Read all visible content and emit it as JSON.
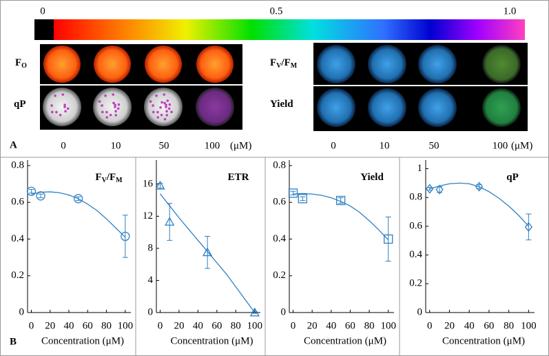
{
  "panel_a": {
    "label": "A",
    "colorbar": {
      "lim": [
        0,
        1
      ],
      "ticks": [
        0,
        0.5,
        {
          "value": 1,
          "label": "1.0"
        }
      ]
    },
    "left_rows": [
      [
        "F",
        "O"
      ],
      [
        "qP"
      ]
    ],
    "right_rows": [
      [
        "F",
        "V",
        "/F",
        "M"
      ],
      [
        "Yield"
      ]
    ],
    "concentrations_left": [
      0,
      10,
      50,
      100
    ],
    "concentrations_right": [
      0,
      10,
      50,
      100
    ],
    "unit": "(μM)"
  },
  "panel_b": {
    "label": "B"
  },
  "chart_data": [
    {
      "type": "scatter",
      "title": [
        "F",
        "V",
        "/F",
        "M"
      ],
      "x_label": "Concentration (μM)",
      "x": [
        0,
        10,
        50,
        100
      ],
      "values": [
        0.66,
        0.635,
        0.62,
        0.415
      ],
      "errors": [
        0.01,
        0.01,
        0.01,
        0.115
      ],
      "marker": "circle",
      "color": "#2f7fc1",
      "fit": {
        "x": [
          0,
          10,
          20,
          30,
          40,
          50,
          60,
          70,
          80,
          90,
          100
        ],
        "values": [
          0.645,
          0.655,
          0.657,
          0.652,
          0.64,
          0.62,
          0.59,
          0.555,
          0.51,
          0.46,
          0.41
        ]
      },
      "xlim": [
        -4,
        106
      ],
      "xticks": [
        0,
        20,
        40,
        60,
        80,
        100
      ],
      "ylim": [
        0,
        0.83
      ],
      "yticks": [
        0,
        0.2,
        0.4,
        0.6,
        0.8
      ]
    },
    {
      "type": "scatter",
      "title": [
        "ETR"
      ],
      "x_label": "Concentration (μM)",
      "x": [
        0,
        10,
        50,
        100
      ],
      "values": [
        15.8,
        11.3,
        7.5,
        0
      ],
      "errors": [
        0.3,
        2.3,
        2,
        0.1
      ],
      "marker": "triangle",
      "color": "#2f7fc1",
      "fit": {
        "x": [
          0,
          10,
          20,
          30,
          40,
          50,
          60,
          70,
          80,
          90,
          100
        ],
        "values": [
          14.8,
          13.3,
          11.8,
          10.4,
          9,
          7.6,
          6.2,
          4.8,
          3.2,
          1.6,
          0
        ]
      },
      "xlim": [
        -4,
        106
      ],
      "xticks": [
        0,
        20,
        40,
        60,
        80,
        100
      ],
      "ylim": [
        0,
        19
      ],
      "yticks": [
        0,
        4,
        8,
        12,
        16
      ]
    },
    {
      "type": "scatter",
      "title": [
        "Yield"
      ],
      "x_label": "Concentration (μM)",
      "x": [
        0,
        10,
        50,
        100
      ],
      "values": [
        0.65,
        0.62,
        0.61,
        0.4
      ],
      "errors": [
        0.01,
        0.01,
        0.015,
        0.12
      ],
      "marker": "square",
      "color": "#2f7fc1",
      "fit": {
        "x": [
          0,
          10,
          20,
          30,
          40,
          50,
          60,
          70,
          80,
          90,
          100
        ],
        "values": [
          0.645,
          0.648,
          0.645,
          0.638,
          0.625,
          0.605,
          0.58,
          0.545,
          0.5,
          0.45,
          0.395
        ]
      },
      "xlim": [
        -4,
        106
      ],
      "xticks": [
        0,
        20,
        40,
        60,
        80,
        100
      ],
      "ylim": [
        0,
        0.83
      ],
      "yticks": [
        0,
        0.2,
        0.4,
        0.6,
        0.8
      ]
    },
    {
      "type": "scatter",
      "title": [
        "qP"
      ],
      "x_label": "Concentration (μM)",
      "x": [
        0,
        10,
        50,
        100
      ],
      "values": [
        0.86,
        0.855,
        0.875,
        0.595
      ],
      "errors": [
        0.01,
        0.02,
        0.015,
        0.09
      ],
      "marker": "diamond",
      "color": "#2f7fc1",
      "fit": {
        "x": [
          0,
          10,
          20,
          30,
          40,
          50,
          60,
          70,
          80,
          90,
          100
        ],
        "values": [
          0.86,
          0.88,
          0.895,
          0.9,
          0.895,
          0.875,
          0.84,
          0.795,
          0.74,
          0.675,
          0.6
        ]
      },
      "xlim": [
        -4,
        106
      ],
      "xticks": [
        0,
        20,
        40,
        60,
        80,
        100
      ],
      "ylim": [
        0,
        1.06
      ],
      "yticks": [
        0,
        0.2,
        0.4,
        0.6,
        0.8,
        1
      ]
    }
  ]
}
